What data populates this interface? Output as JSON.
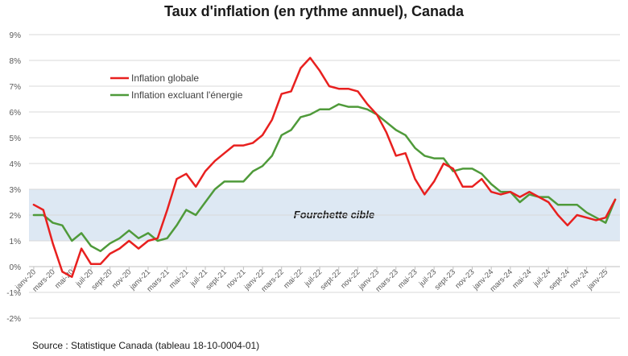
{
  "chart_data": {
    "type": "line",
    "title": "Taux d'inflation (en rythme annuel), Canada",
    "source": "Source : Statistique Canada (tableau 18-10-0004-01)",
    "ylim": [
      -2,
      9
    ],
    "yticks": [
      "-2%",
      "-1%",
      "0%",
      "1%",
      "2%",
      "3%",
      "4%",
      "5%",
      "6%",
      "7%",
      "8%",
      "9%"
    ],
    "x": [
      "janv-20",
      "févr-20",
      "mars-20",
      "avr-20",
      "mai-20",
      "juin-20",
      "juil-20",
      "août-20",
      "sept-20",
      "oct-20",
      "nov-20",
      "déc-20",
      "janv-21",
      "févr-21",
      "mars-21",
      "avr-21",
      "mai-21",
      "juin-21",
      "juil-21",
      "août-21",
      "sept-21",
      "oct-21",
      "nov-21",
      "déc-21",
      "janv-22",
      "févr-22",
      "mars-22",
      "avr-22",
      "mai-22",
      "juin-22",
      "juil-22",
      "août-22",
      "sept-22",
      "oct-22",
      "nov-22",
      "déc-22",
      "janv-23",
      "févr-23",
      "mars-23",
      "avr-23",
      "mai-23",
      "juin-23",
      "juil-23",
      "août-23",
      "sept-23",
      "oct-23",
      "nov-23",
      "déc-23",
      "janv-24",
      "févr-24",
      "mars-24",
      "avr-24",
      "mai-24",
      "juin-24",
      "juil-24",
      "août-24",
      "sept-24",
      "oct-24",
      "nov-24",
      "déc-24",
      "janv-25",
      "févr-25"
    ],
    "xtick_labels": [
      "janv-20",
      "mars-20",
      "mai-20",
      "juil-20",
      "sept-20",
      "nov-20",
      "janv-21",
      "mars-21",
      "mai-21",
      "juil-21",
      "sept-21",
      "nov-21",
      "janv-22",
      "mars-22",
      "mai-22",
      "juil-22",
      "sept-22",
      "nov-22",
      "janv-23",
      "mars-23",
      "mai-23",
      "juil-23",
      "sept-23",
      "nov-23",
      "janv-24",
      "mars-24",
      "mai-24",
      "juil-24",
      "sept-24",
      "nov-24",
      "janv-25"
    ],
    "target_band": {
      "min": 1,
      "max": 3,
      "label": "Fourchette cible",
      "color": "#dde8f3"
    },
    "series": [
      {
        "name": "Inflation globale",
        "color": "#e8201f",
        "values": [
          2.4,
          2.2,
          0.9,
          -0.2,
          -0.4,
          0.7,
          0.1,
          0.1,
          0.5,
          0.7,
          1.0,
          0.7,
          1.0,
          1.1,
          2.2,
          3.4,
          3.6,
          3.1,
          3.7,
          4.1,
          4.4,
          4.7,
          4.7,
          4.8,
          5.1,
          5.7,
          6.7,
          6.8,
          7.7,
          8.1,
          7.6,
          7.0,
          6.9,
          6.9,
          6.8,
          6.3,
          5.9,
          5.2,
          4.3,
          4.4,
          3.4,
          2.8,
          3.3,
          4.0,
          3.8,
          3.1,
          3.1,
          3.4,
          2.9,
          2.8,
          2.9,
          2.7,
          2.9,
          2.7,
          2.5,
          2.0,
          1.6,
          2.0,
          1.9,
          1.8,
          1.9,
          2.6
        ]
      },
      {
        "name": "Inflation excluant l'énergie",
        "color": "#4f9a3a",
        "values": [
          2.0,
          2.0,
          1.7,
          1.6,
          1.0,
          1.3,
          0.8,
          0.6,
          0.9,
          1.1,
          1.4,
          1.1,
          1.3,
          1.0,
          1.1,
          1.6,
          2.2,
          2.0,
          2.5,
          3.0,
          3.3,
          3.3,
          3.3,
          3.7,
          3.9,
          4.3,
          5.1,
          5.3,
          5.8,
          5.9,
          6.1,
          6.1,
          6.3,
          6.2,
          6.2,
          6.1,
          5.9,
          5.6,
          5.3,
          5.1,
          4.6,
          4.3,
          4.2,
          4.2,
          3.7,
          3.8,
          3.8,
          3.6,
          3.2,
          2.9,
          2.9,
          2.5,
          2.8,
          2.7,
          2.7,
          2.4,
          2.4,
          2.4,
          2.1,
          1.9,
          1.7,
          2.6
        ]
      }
    ]
  }
}
